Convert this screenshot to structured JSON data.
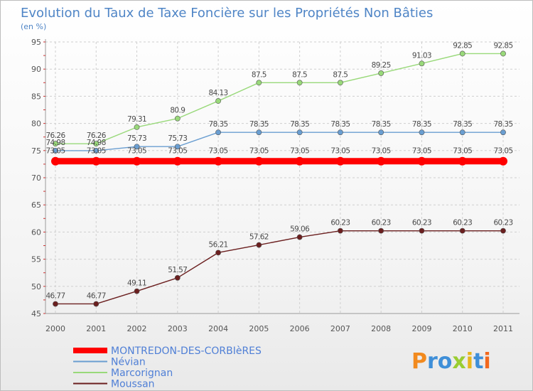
{
  "chart_data": {
    "type": "line",
    "title": "Evolution du Taux de Taxe Foncière sur les Propriétés Non Bâties",
    "subtitle": "(en %)",
    "x": [
      "2000",
      "2001",
      "2002",
      "2003",
      "2004",
      "2005",
      "2006",
      "2007",
      "2008",
      "2009",
      "2010",
      "2011"
    ],
    "ylim": [
      45,
      95
    ],
    "yticks": [
      "45",
      "50",
      "55",
      "60",
      "65",
      "70",
      "75",
      "80",
      "85",
      "90",
      "95"
    ],
    "grid": true,
    "legend_position": "bottom-left",
    "series": [
      {
        "name": "MONTREDON-DES-CORBIèRES",
        "color": "#ff0000",
        "values": [
          73.05,
          73.05,
          73.05,
          73.05,
          73.05,
          73.05,
          73.05,
          73.05,
          73.05,
          73.05,
          73.05,
          73.05
        ],
        "labels": [
          "73.05",
          "73.05",
          "73.05",
          "73.05",
          "73.05",
          "73.05",
          "73.05",
          "73.05",
          "73.05",
          "73.05",
          "73.05",
          "73.05"
        ]
      },
      {
        "name": "Névian",
        "color": "#6a9ed1",
        "values": [
          74.98,
          74.98,
          75.73,
          75.73,
          78.35,
          78.35,
          78.35,
          78.35,
          78.35,
          78.35,
          78.35,
          78.35
        ],
        "labels": [
          "74.98",
          "74.98",
          "75.73",
          "75.73",
          "78.35",
          "78.35",
          "78.35",
          "78.35",
          "78.35",
          "78.35",
          "78.35",
          "78.35"
        ]
      },
      {
        "name": "Marcorignan",
        "color": "#99d97a",
        "values": [
          76.26,
          76.26,
          79.31,
          80.9,
          84.13,
          87.5,
          87.5,
          87.5,
          89.25,
          91.03,
          92.85,
          92.85
        ],
        "labels": [
          "76.26",
          "76.26",
          "79.31",
          "80.9",
          "84.13",
          "87.5",
          "87.5",
          "87.5",
          "89.25",
          "91.03",
          "92.85",
          "92.85"
        ]
      },
      {
        "name": "Moussan",
        "color": "#6b1f1f",
        "values": [
          46.77,
          46.77,
          49.11,
          51.57,
          56.21,
          57.62,
          59.06,
          60.23,
          60.23,
          60.23,
          60.23,
          60.23
        ],
        "labels": [
          "46.77",
          "46.77",
          "49.11",
          "51.57",
          "56.21",
          "57.62",
          "59.06",
          "60.23",
          "60.23",
          "60.23",
          "60.23",
          "60.23"
        ]
      }
    ]
  },
  "brand": {
    "logo_text": "Proxiti"
  }
}
